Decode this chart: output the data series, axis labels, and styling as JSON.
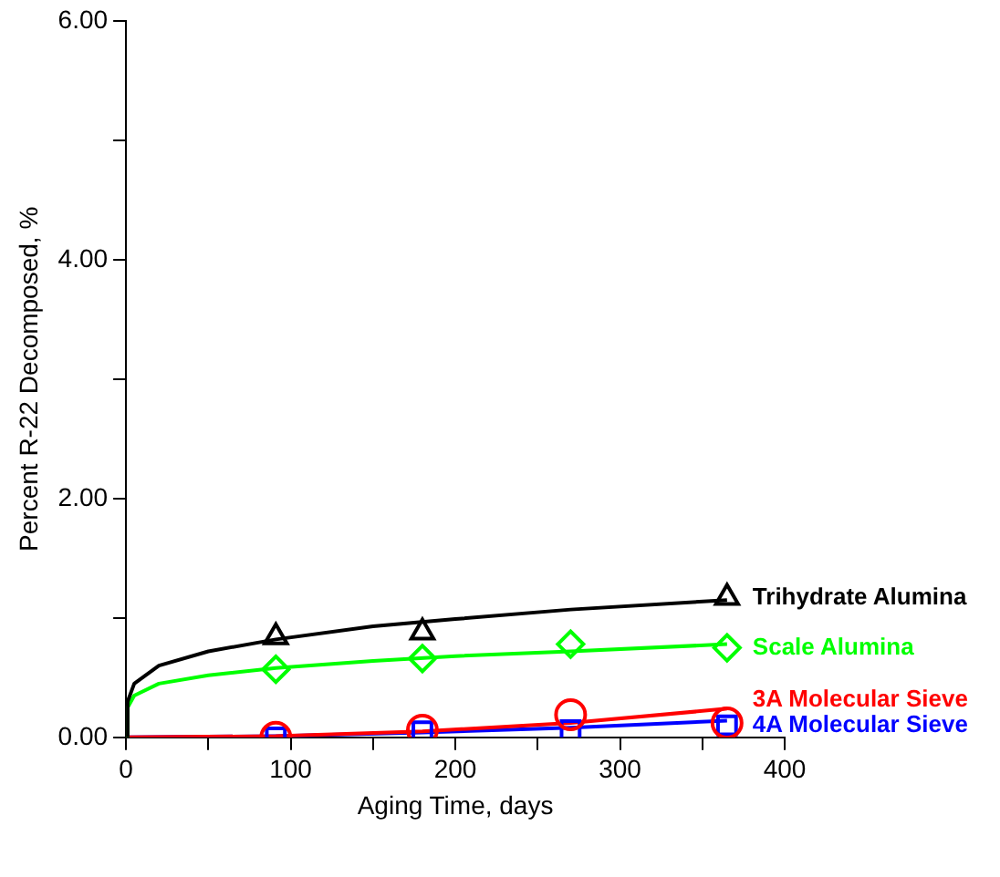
{
  "chart_data": {
    "type": "scatter",
    "xlabel": "Aging Time, days",
    "ylabel": "Percent R-22 Decomposed, %",
    "xlim": [
      0,
      400
    ],
    "xticks": [
      0,
      {
        "value": 50,
        "label": null
      },
      100,
      {
        "value": 150,
        "label": null
      },
      200,
      {
        "value": 250,
        "label": null
      },
      300,
      {
        "value": 350,
        "label": null
      },
      400
    ],
    "ylim": [
      0,
      6
    ],
    "yticks": [
      {
        "value": 0,
        "label": "0.00"
      },
      {
        "value": 1,
        "label": null
      },
      {
        "value": 2,
        "label": "2.00"
      },
      {
        "value": 3,
        "label": null
      },
      {
        "value": 4,
        "label": "4.00"
      },
      {
        "value": 5,
        "label": null
      },
      {
        "value": 6,
        "label": "6.00"
      }
    ],
    "grid": false,
    "legend": false,
    "series": [
      {
        "name": "Trihydrate Alumina",
        "color": "#000000",
        "marker": "triangle",
        "x": [
          91,
          180,
          365
        ],
        "values": [
          0.84,
          0.88,
          1.17
        ]
      },
      {
        "name": "Scale Alumina",
        "color": "#00ff00",
        "marker": "diamond",
        "x": [
          91,
          180,
          270,
          365
        ],
        "values": [
          0.57,
          0.66,
          0.78,
          0.75
        ]
      },
      {
        "name": "3A Molecular Sieve",
        "color": "#ff0000",
        "marker": "circle",
        "x": [
          91,
          180,
          270,
          365
        ],
        "values": [
          0,
          0.06,
          0.19,
          0.12
        ]
      },
      {
        "name": "4A Molecular Sieve",
        "color": "#0000ff",
        "marker": "square",
        "x": [
          91,
          180,
          270,
          365
        ],
        "values": [
          0,
          0.05,
          0.06,
          0.1
        ]
      },
      {
        "type": "line",
        "color": "#000000",
        "marker": "none",
        "x": [
          0,
          1,
          5,
          20,
          50,
          91,
          150,
          200,
          270,
          365
        ],
        "values": [
          0,
          0.3,
          0.45,
          0.6,
          0.72,
          0.82,
          0.93,
          0.99,
          1.07,
          1.15
        ]
      },
      {
        "type": "line",
        "color": "#00ff00",
        "marker": "none",
        "x": [
          0,
          1,
          5,
          20,
          50,
          91,
          150,
          200,
          270,
          365
        ],
        "values": [
          0,
          0.25,
          0.35,
          0.45,
          0.52,
          0.58,
          0.64,
          0.68,
          0.72,
          0.78
        ]
      },
      {
        "type": "line",
        "color": "#ff0000",
        "marker": "none",
        "x": [
          0,
          91,
          180,
          270,
          365
        ],
        "values": [
          0,
          0.01,
          0.05,
          0.12,
          0.24
        ]
      },
      {
        "type": "line",
        "color": "#0000ff",
        "marker": "none",
        "x": [
          0,
          91,
          180,
          270,
          365
        ],
        "values": [
          0,
          0.01,
          0.04,
          0.08,
          0.14
        ]
      }
    ]
  }
}
